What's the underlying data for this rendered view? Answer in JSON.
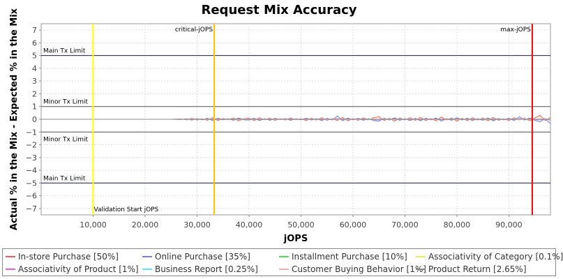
{
  "chart_data": {
    "type": "line",
    "title": "Request Mix Accuracy",
    "xlabel": "jOPS",
    "ylabel": "Actual % in the Mix - Expected % in the Mix",
    "xlim": [
      0,
      98000
    ],
    "ylim": [
      -7.5,
      7.5
    ],
    "x_ticks": [
      10000,
      20000,
      30000,
      40000,
      50000,
      60000,
      70000,
      80000,
      90000
    ],
    "x_tick_labels": [
      "10,000",
      "20,000",
      "30,000",
      "40,000",
      "50,000",
      "60,000",
      "70,000",
      "80,000",
      "90,000"
    ],
    "y_ticks": [
      7,
      6,
      5,
      4,
      3,
      2,
      1,
      0,
      -1,
      -2,
      -3,
      -4,
      -5,
      -6,
      -7
    ],
    "y_tick_labels": [
      "7",
      "6",
      "5",
      "4",
      "3",
      "2",
      "1",
      "0",
      "−1",
      "−2",
      "−3",
      "−4",
      "−5",
      "−6",
      "−7"
    ],
    "grid": true,
    "legend_position": "bottom",
    "horizontal_lines": [
      {
        "y": 5,
        "label": "Main Tx Limit",
        "label_side": "above",
        "color": "#1a1a5e"
      },
      {
        "y": 1,
        "label": "Minor Tx Limit",
        "label_side": "above",
        "color": "#555555"
      },
      {
        "y": -1,
        "label": "Minor Tx Limit",
        "label_side": "below",
        "color": "#555555"
      },
      {
        "y": -5,
        "label": "Main Tx Limit",
        "label_side": "above",
        "color": "#1a1a5e"
      }
    ],
    "vertical_lines": [
      {
        "x": 10000,
        "label": "Validation Start jOPS",
        "label_pos": "bottom",
        "color": "#ffff00"
      },
      {
        "x": 33300,
        "label": "critical-jOPS",
        "label_pos": "top",
        "color": "#ffc000"
      },
      {
        "x": 94500,
        "label": "max-jOPS",
        "label_pos": "top",
        "color": "#ff0000"
      }
    ],
    "x": [
      0,
      5000,
      10000,
      15000,
      20000,
      25000,
      27000,
      28000,
      29000,
      30000,
      31000,
      32000,
      33000,
      34000,
      35000,
      36000,
      37000,
      38000,
      39000,
      40000,
      41000,
      42000,
      43000,
      44000,
      45000,
      46000,
      47000,
      48000,
      49000,
      50000,
      51000,
      52000,
      53000,
      54000,
      55000,
      56000,
      57000,
      58000,
      59000,
      60000,
      61000,
      62000,
      63000,
      64000,
      65000,
      66000,
      67000,
      68000,
      69000,
      70000,
      71000,
      72000,
      73000,
      74000,
      75000,
      76000,
      77000,
      78000,
      79000,
      80000,
      81000,
      82000,
      83000,
      84000,
      85000,
      86000,
      87000,
      88000,
      89000,
      90000,
      91000,
      92000,
      93000,
      94000,
      95000,
      96000,
      97000,
      98000
    ],
    "series": [
      {
        "name": "In-store Purchase [50%]",
        "color": "#ff5555",
        "values": [
          0,
          0,
          0,
          0,
          0,
          0,
          0.02,
          -0.05,
          0.08,
          -0.06,
          0.05,
          -0.08,
          0.12,
          -0.1,
          0.06,
          -0.04,
          0.1,
          -0.12,
          0.05,
          0.08,
          -0.1,
          0.12,
          -0.05,
          0.09,
          -0.08,
          0.04,
          -0.06,
          0.1,
          -0.04,
          0.05,
          -0.1,
          0.08,
          -0.06,
          0.12,
          -0.08,
          0.05,
          -0.1,
          0.15,
          -0.12,
          0.06,
          -0.08,
          0.1,
          -0.05,
          0.12,
          0.2,
          -0.1,
          0.08,
          -0.15,
          0.1,
          -0.06,
          0.12,
          -0.08,
          0.15,
          -0.1,
          0.06,
          -0.12,
          0.18,
          -0.05,
          0.1,
          -0.15,
          0.08,
          -0.1,
          0.12,
          -0.06,
          0.1,
          -0.12,
          0.15,
          -0.08,
          0.05,
          -0.1,
          0.12,
          -0.05,
          0.08,
          -0.12,
          0.1,
          0.3,
          -0.1,
          0.15
        ]
      },
      {
        "name": "Online Purchase [35%]",
        "color": "#7777ff",
        "values": [
          0,
          0,
          0,
          0,
          0,
          0,
          -0.02,
          0.04,
          -0.06,
          0.05,
          -0.05,
          0.07,
          -0.1,
          0.08,
          -0.05,
          0.04,
          -0.08,
          0.1,
          -0.04,
          -0.06,
          0.08,
          -0.1,
          0.05,
          -0.08,
          0.07,
          -0.03,
          0.05,
          -0.08,
          0.04,
          -0.05,
          0.08,
          -0.06,
          0.05,
          -0.1,
          0.07,
          -0.05,
          0.25,
          -0.12,
          0.1,
          -0.05,
          0.07,
          -0.08,
          0.05,
          -0.1,
          -0.15,
          0.08,
          -0.06,
          0.12,
          -0.08,
          0.05,
          -0.1,
          0.07,
          -0.12,
          0.08,
          -0.05,
          0.1,
          -0.15,
          0.05,
          -0.08,
          0.12,
          -0.06,
          0.08,
          -0.1,
          0.05,
          -0.08,
          0.1,
          -0.12,
          0.06,
          -0.05,
          0.08,
          -0.1,
          0.2,
          -0.06,
          0.1,
          -0.08,
          -0.2,
          0.05,
          -0.35
        ]
      },
      {
        "name": "Installment Purchase [10%]",
        "color": "#55dd55",
        "values": [
          0,
          0,
          0,
          0,
          0,
          0,
          0.01,
          -0.02,
          0.03,
          -0.02,
          0.02,
          -0.03,
          0.04,
          -0.03,
          0.02,
          -0.02,
          0.03,
          -0.04,
          0.02,
          0.03,
          -0.03,
          0.04,
          -0.02,
          0.03,
          -0.03,
          0.02,
          -0.02,
          0.03,
          -0.02,
          0.02,
          -0.03,
          0.03,
          -0.02,
          0.04,
          -0.03,
          0.02,
          -0.03,
          0.05,
          -0.04,
          0.02,
          -0.03,
          0.03,
          -0.02,
          0.04,
          0.05,
          -0.03,
          0.03,
          -0.05,
          0.03,
          -0.02,
          0.04,
          -0.03,
          0.05,
          -0.03,
          0.02,
          -0.04,
          0.05,
          -0.02,
          0.03,
          -0.05,
          0.03,
          -0.03,
          0.04,
          -0.02,
          0.03,
          -0.04,
          0.05,
          -0.03,
          0.02,
          -0.03,
          0.04,
          -0.02,
          0.03,
          -0.04,
          0.03,
          0.06,
          -0.03,
          0.05
        ]
      },
      {
        "name": "Associativity of Category [0.1%]",
        "color": "#eeee44",
        "values": [
          0,
          0,
          0,
          0,
          0,
          0,
          0,
          0,
          0,
          0,
          0,
          0,
          0,
          0,
          0,
          0,
          0,
          0,
          0,
          0,
          0,
          0,
          0,
          0,
          0,
          0,
          0,
          0,
          0,
          0,
          0,
          0,
          0,
          0,
          0,
          0,
          0,
          0,
          0,
          0,
          0,
          0,
          0,
          0,
          0,
          0,
          0,
          0,
          0,
          0,
          0,
          0,
          0,
          0,
          0,
          0,
          0,
          0,
          0,
          0,
          0,
          0,
          0,
          0,
          0,
          0,
          0,
          0,
          0,
          0,
          0,
          0,
          0,
          0,
          0,
          0,
          0,
          0
        ]
      },
      {
        "name": "Associativity of Product [1%]",
        "color": "#ee55ee",
        "values": [
          0,
          0,
          0,
          0,
          0,
          0,
          0,
          0.01,
          -0.01,
          0.01,
          -0.01,
          0.01,
          -0.02,
          0.01,
          -0.01,
          0.01,
          -0.01,
          0.02,
          -0.01,
          0.01,
          -0.01,
          0.02,
          -0.01,
          0.01,
          -0.01,
          0.01,
          -0.01,
          0.01,
          -0.01,
          0.01,
          -0.01,
          0.01,
          -0.01,
          0.02,
          -0.01,
          0.01,
          -0.01,
          0.02,
          -0.01,
          0.01,
          -0.01,
          0.01,
          -0.01,
          0.02,
          0.01,
          -0.01,
          0.01,
          -0.02,
          0.01,
          -0.01,
          0.01,
          -0.01,
          0.02,
          -0.01,
          0.01,
          -0.01,
          0.02,
          -0.01,
          0.01,
          -0.02,
          0.01,
          -0.01,
          0.01,
          -0.01,
          0.01,
          -0.01,
          0.02,
          -0.01,
          0.01,
          -0.01,
          0.01,
          -0.01,
          0.01,
          -0.01,
          0.01,
          0.02,
          -0.01,
          0.02
        ]
      },
      {
        "name": "Business Report [0.25%]",
        "color": "#55eeee",
        "values": [
          0,
          0,
          0,
          0,
          0,
          0,
          0,
          0,
          0.01,
          0,
          -0.01,
          0,
          0.01,
          0,
          -0.01,
          0,
          0.01,
          0,
          -0.01,
          0,
          0.01,
          0,
          -0.01,
          0,
          0.01,
          0,
          -0.01,
          0,
          0.01,
          0,
          -0.01,
          0,
          0.01,
          0,
          -0.01,
          0,
          0.01,
          0,
          -0.01,
          0,
          0.01,
          0,
          -0.01,
          0,
          0.01,
          0,
          -0.01,
          0,
          0.01,
          0,
          -0.01,
          0,
          0.01,
          0,
          -0.01,
          0,
          0.01,
          0,
          -0.01,
          0,
          0.01,
          0,
          -0.01,
          0,
          0.01,
          0,
          -0.01,
          0,
          0.01,
          0,
          -0.01,
          0,
          0.01,
          0,
          -0.01,
          0,
          0.01,
          0
        ]
      },
      {
        "name": "Customer Buying Behavior [1%]",
        "color": "#ffaaaa",
        "values": [
          0,
          0,
          0,
          0,
          0,
          0,
          0.01,
          -0.02,
          0.02,
          -0.01,
          0.02,
          -0.02,
          0.03,
          -0.02,
          0.01,
          -0.02,
          0.02,
          -0.03,
          0.01,
          0.02,
          -0.02,
          0.03,
          -0.01,
          0.02,
          -0.02,
          0.01,
          -0.02,
          0.02,
          -0.01,
          0.01,
          -0.02,
          0.02,
          -0.01,
          0.03,
          -0.02,
          0.01,
          -0.02,
          0.03,
          -0.02,
          0.01,
          -0.02,
          0.02,
          -0.01,
          0.03,
          0.04,
          -0.02,
          0.02,
          -0.03,
          0.02,
          -0.01,
          0.03,
          -0.02,
          0.03,
          -0.02,
          0.01,
          -0.03,
          0.04,
          -0.01,
          0.02,
          -0.03,
          0.02,
          -0.02,
          0.03,
          -0.01,
          0.02,
          -0.03,
          0.03,
          -0.02,
          0.01,
          -0.02,
          0.03,
          -0.01,
          0.02,
          -0.03,
          0.02,
          0.05,
          -0.02,
          0.04
        ]
      },
      {
        "name": "Product Return [2.65%]",
        "color": "#888888",
        "values": [
          0,
          0,
          0,
          0,
          0,
          0,
          0,
          0.02,
          -0.03,
          0.02,
          -0.02,
          0.03,
          -0.04,
          0.03,
          -0.02,
          0.02,
          -0.03,
          0.04,
          -0.02,
          -0.03,
          0.03,
          -0.04,
          0.02,
          -0.03,
          0.03,
          -0.01,
          0.02,
          -0.03,
          0.02,
          -0.02,
          0.03,
          -0.02,
          0.02,
          -0.04,
          0.03,
          -0.02,
          0.05,
          -0.04,
          0.04,
          -0.02,
          0.03,
          -0.03,
          0.02,
          -0.04,
          -0.05,
          0.03,
          -0.02,
          0.05,
          -0.03,
          0.02,
          -0.04,
          0.03,
          -0.05,
          0.03,
          -0.02,
          0.04,
          -0.05,
          0.02,
          -0.03,
          0.05,
          -0.02,
          0.03,
          -0.04,
          0.02,
          -0.03,
          0.04,
          -0.05,
          0.02,
          -0.02,
          0.03,
          -0.04,
          0.05,
          -0.02,
          0.04,
          -0.03,
          -0.05,
          0.02,
          -0.06
        ]
      }
    ]
  }
}
